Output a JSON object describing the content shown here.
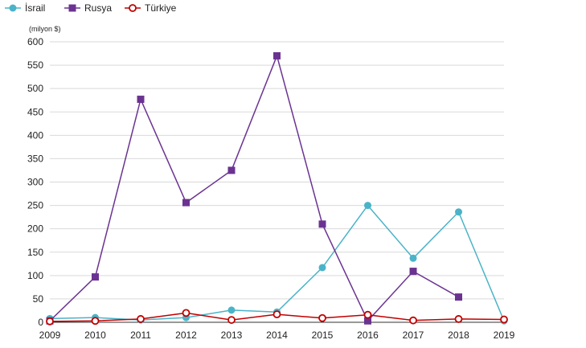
{
  "chart_data": {
    "type": "line",
    "unit_label": "(milyon $)",
    "x": [
      2009,
      2010,
      2011,
      2012,
      2013,
      2014,
      2015,
      2016,
      2017,
      2018,
      2019
    ],
    "ylim": [
      0,
      600
    ],
    "yticks": [
      0,
      50,
      100,
      150,
      200,
      250,
      300,
      350,
      400,
      450,
      500,
      550,
      600
    ],
    "grid": "horizontal",
    "legend_position": "top-left",
    "series": [
      {
        "name": "İsrail",
        "marker": "circle",
        "color": "#4ab3c8",
        "values": [
          8,
          10,
          5,
          10,
          26,
          22,
          117,
          250,
          137,
          236,
          3
        ]
      },
      {
        "name": "Rusya",
        "marker": "square",
        "color": "#6b3391",
        "values": [
          3,
          97,
          477,
          256,
          325,
          570,
          210,
          3,
          109,
          54,
          null
        ]
      },
      {
        "name": "Türkiye",
        "marker": "hollow-circle",
        "color": "#c00000",
        "values": [
          2,
          3,
          7,
          20,
          5,
          17,
          9,
          16,
          4,
          7,
          6
        ]
      }
    ]
  }
}
